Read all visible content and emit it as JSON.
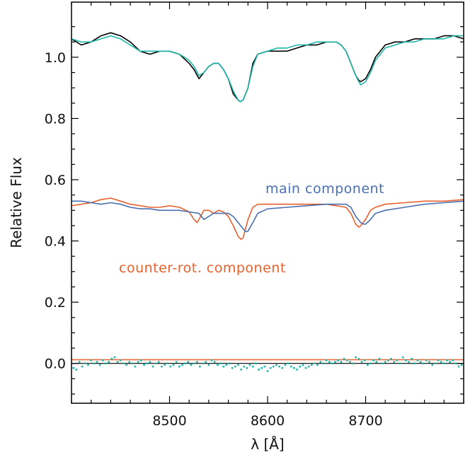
{
  "chart_data": {
    "type": "line",
    "xlabel": "λ [Å]",
    "ylabel": "Relative Flux",
    "xlim": [
      8400,
      8800
    ],
    "ylim": [
      -0.13,
      1.18
    ],
    "xticks": [
      8500,
      8600,
      8700
    ],
    "yticks": [
      0.0,
      0.2,
      0.4,
      0.6,
      0.8,
      1.0
    ],
    "xtick_labels": [
      "8500",
      "8600",
      "8700"
    ],
    "ytick_labels": [
      "0.0",
      "0.2",
      "0.4",
      "0.6",
      "0.8",
      "1.0"
    ],
    "grid": false,
    "annotations": [
      {
        "text": "main component",
        "color": "#4a6fb0"
      },
      {
        "text": "counter-rot. component",
        "color": "#e8602c"
      }
    ],
    "colors": {
      "observed": "#000000",
      "model": "#1fb8a8",
      "main": "#4a6fb0",
      "counter": "#e8602c",
      "residuals": "#1fb8a8",
      "zero_line": "#000000",
      "offset_line": "#e8602c"
    },
    "series": [
      {
        "key": "observed",
        "x": [
          8400,
          8410,
          8420,
          8430,
          8440,
          8450,
          8460,
          8470,
          8480,
          8490,
          8500,
          8510,
          8520,
          8525,
          8530,
          8535,
          8540,
          8545,
          8550,
          8555,
          8560,
          8565,
          8570,
          8572,
          8575,
          8580,
          8585,
          8590,
          8600,
          8610,
          8620,
          8630,
          8640,
          8650,
          8660,
          8670,
          8675,
          8680,
          8685,
          8690,
          8693,
          8695,
          8700,
          8705,
          8710,
          8720,
          8730,
          8740,
          8750,
          8760,
          8770,
          8780,
          8790,
          8800
        ],
        "y": [
          1.06,
          1.04,
          1.05,
          1.07,
          1.08,
          1.07,
          1.05,
          1.02,
          1.01,
          1.02,
          1.02,
          1.01,
          0.98,
          0.96,
          0.93,
          0.95,
          0.97,
          0.98,
          0.98,
          0.96,
          0.93,
          0.88,
          0.86,
          0.855,
          0.86,
          0.9,
          0.98,
          1.01,
          1.02,
          1.02,
          1.02,
          1.03,
          1.04,
          1.04,
          1.05,
          1.05,
          1.04,
          1.02,
          0.98,
          0.94,
          0.925,
          0.92,
          0.93,
          0.96,
          1.0,
          1.04,
          1.05,
          1.05,
          1.06,
          1.06,
          1.06,
          1.07,
          1.07,
          1.06
        ]
      },
      {
        "key": "model",
        "x": [
          8400,
          8410,
          8420,
          8430,
          8440,
          8450,
          8460,
          8470,
          8480,
          8490,
          8500,
          8510,
          8520,
          8525,
          8530,
          8535,
          8540,
          8545,
          8550,
          8555,
          8560,
          8565,
          8570,
          8572,
          8575,
          8580,
          8585,
          8590,
          8600,
          8610,
          8620,
          8630,
          8640,
          8650,
          8660,
          8670,
          8675,
          8680,
          8685,
          8690,
          8693,
          8695,
          8700,
          8705,
          8710,
          8720,
          8730,
          8740,
          8750,
          8760,
          8770,
          8780,
          8790,
          8800
        ],
        "y": [
          1.06,
          1.05,
          1.05,
          1.06,
          1.07,
          1.06,
          1.04,
          1.02,
          1.02,
          1.02,
          1.02,
          1.01,
          0.99,
          0.97,
          0.94,
          0.95,
          0.97,
          0.98,
          0.98,
          0.96,
          0.93,
          0.89,
          0.86,
          0.855,
          0.86,
          0.9,
          0.97,
          1.01,
          1.02,
          1.03,
          1.03,
          1.04,
          1.04,
          1.05,
          1.05,
          1.05,
          1.04,
          1.02,
          0.98,
          0.94,
          0.92,
          0.91,
          0.92,
          0.95,
          0.99,
          1.03,
          1.04,
          1.05,
          1.05,
          1.06,
          1.06,
          1.06,
          1.07,
          1.07
        ]
      },
      {
        "key": "main",
        "name": "main component",
        "x": [
          8400,
          8410,
          8420,
          8430,
          8440,
          8450,
          8460,
          8470,
          8480,
          8490,
          8500,
          8510,
          8520,
          8530,
          8535,
          8540,
          8545,
          8550,
          8560,
          8565,
          8570,
          8575,
          8578,
          8580,
          8585,
          8590,
          8600,
          8620,
          8640,
          8660,
          8680,
          8685,
          8690,
          8695,
          8698,
          8700,
          8705,
          8710,
          8720,
          8740,
          8760,
          8780,
          8800
        ],
        "y": [
          0.53,
          0.53,
          0.525,
          0.52,
          0.525,
          0.52,
          0.51,
          0.505,
          0.505,
          0.5,
          0.5,
          0.5,
          0.495,
          0.49,
          0.47,
          0.48,
          0.49,
          0.49,
          0.49,
          0.48,
          0.46,
          0.44,
          0.43,
          0.432,
          0.46,
          0.49,
          0.505,
          0.51,
          0.515,
          0.52,
          0.52,
          0.51,
          0.48,
          0.46,
          0.455,
          0.455,
          0.47,
          0.49,
          0.5,
          0.51,
          0.52,
          0.525,
          0.53
        ]
      },
      {
        "key": "counter",
        "name": "counter-rot. component",
        "x": [
          8400,
          8410,
          8420,
          8430,
          8440,
          8450,
          8460,
          8470,
          8480,
          8490,
          8500,
          8510,
          8520,
          8525,
          8528,
          8530,
          8535,
          8540,
          8545,
          8550,
          8555,
          8560,
          8565,
          8570,
          8573,
          8575,
          8580,
          8585,
          8590,
          8600,
          8620,
          8640,
          8660,
          8680,
          8685,
          8690,
          8693,
          8695,
          8700,
          8705,
          8710,
          8720,
          8740,
          8760,
          8780,
          8800
        ],
        "y": [
          0.515,
          0.52,
          0.525,
          0.535,
          0.54,
          0.53,
          0.52,
          0.515,
          0.51,
          0.51,
          0.515,
          0.51,
          0.495,
          0.47,
          0.46,
          0.47,
          0.5,
          0.5,
          0.49,
          0.5,
          0.495,
          0.48,
          0.45,
          0.415,
          0.405,
          0.41,
          0.47,
          0.51,
          0.52,
          0.52,
          0.52,
          0.52,
          0.52,
          0.51,
          0.49,
          0.455,
          0.445,
          0.45,
          0.47,
          0.5,
          0.51,
          0.52,
          0.525,
          0.53,
          0.53,
          0.535
        ]
      },
      {
        "key": "offset_line",
        "x": [
          8400,
          8800
        ],
        "y": [
          0.012,
          0.012
        ]
      },
      {
        "key": "zero_line",
        "x": [
          8400,
          8800
        ],
        "y": [
          0.0,
          0.0
        ]
      }
    ],
    "residuals": {
      "x": [
        8402,
        8405,
        8408,
        8411,
        8414,
        8417,
        8420,
        8423,
        8426,
        8429,
        8432,
        8435,
        8438,
        8441,
        8444,
        8447,
        8450,
        8453,
        8456,
        8459,
        8462,
        8465,
        8468,
        8471,
        8474,
        8477,
        8480,
        8483,
        8486,
        8489,
        8492,
        8495,
        8498,
        8501,
        8504,
        8507,
        8510,
        8513,
        8516,
        8519,
        8522,
        8525,
        8528,
        8531,
        8534,
        8537,
        8540,
        8543,
        8546,
        8549,
        8552,
        8555,
        8558,
        8561,
        8564,
        8567,
        8570,
        8573,
        8576,
        8579,
        8582,
        8585,
        8588,
        8591,
        8594,
        8597,
        8600,
        8603,
        8606,
        8609,
        8612,
        8615,
        8618,
        8621,
        8624,
        8627,
        8630,
        8633,
        8636,
        8639,
        8642,
        8645,
        8648,
        8651,
        8654,
        8657,
        8660,
        8663,
        8666,
        8669,
        8672,
        8675,
        8678,
        8681,
        8684,
        8687,
        8690,
        8693,
        8696,
        8699,
        8702,
        8705,
        8708,
        8711,
        8714,
        8717,
        8720,
        8723,
        8726,
        8729,
        8732,
        8735,
        8738,
        8741,
        8744,
        8747,
        8750,
        8753,
        8756,
        8759,
        8762,
        8765,
        8768,
        8771,
        8774,
        8777,
        8780,
        8783,
        8786,
        8789,
        8792,
        8795,
        8798
      ],
      "y": [
        -0.015,
        -0.02,
        0.005,
        -0.01,
        0.0,
        -0.005,
        0.01,
        0.0,
        0.005,
        -0.005,
        0.01,
        0.0,
        0.005,
        0.015,
        0.02,
        0.005,
        0.01,
        0.0,
        -0.005,
        0.005,
        0.0,
        -0.01,
        0.005,
        0.01,
        -0.005,
        0.0,
        0.005,
        -0.01,
        0.0,
        0.005,
        -0.01,
        -0.005,
        0.0,
        -0.01,
        -0.005,
        0.005,
        -0.01,
        -0.005,
        0.0,
        0.005,
        -0.005,
        0.0,
        0.005,
        -0.01,
        0.0,
        0.005,
        -0.005,
        0.01,
        0.005,
        -0.005,
        0.0,
        -0.01,
        -0.005,
        0.0,
        -0.015,
        -0.01,
        -0.005,
        -0.02,
        -0.01,
        -0.015,
        -0.005,
        -0.01,
        0.0,
        -0.02,
        -0.015,
        -0.01,
        -0.025,
        -0.015,
        -0.01,
        -0.005,
        -0.01,
        -0.015,
        -0.005,
        0.0,
        -0.01,
        -0.015,
        -0.02,
        -0.01,
        -0.005,
        -0.015,
        -0.01,
        -0.005,
        0.0,
        -0.005,
        0.005,
        0.0,
        0.01,
        0.005,
        0.0,
        0.005,
        0.01,
        0.005,
        0.015,
        0.01,
        0.005,
        0.0,
        0.02,
        0.015,
        0.005,
        0.01,
        -0.005,
        0.0,
        0.01,
        0.005,
        0.015,
        0.0,
        0.005,
        0.01,
        0.015,
        0.005,
        0.01,
        0.0,
        0.02,
        0.01,
        0.005,
        0.015,
        0.0,
        0.01,
        0.005,
        0.0,
        0.01,
        0.005,
        -0.005,
        0.0,
        0.01,
        0.005,
        0.0,
        0.01,
        0.005,
        0.01,
        0.0,
        -0.01,
        -0.005
      ]
    }
  }
}
